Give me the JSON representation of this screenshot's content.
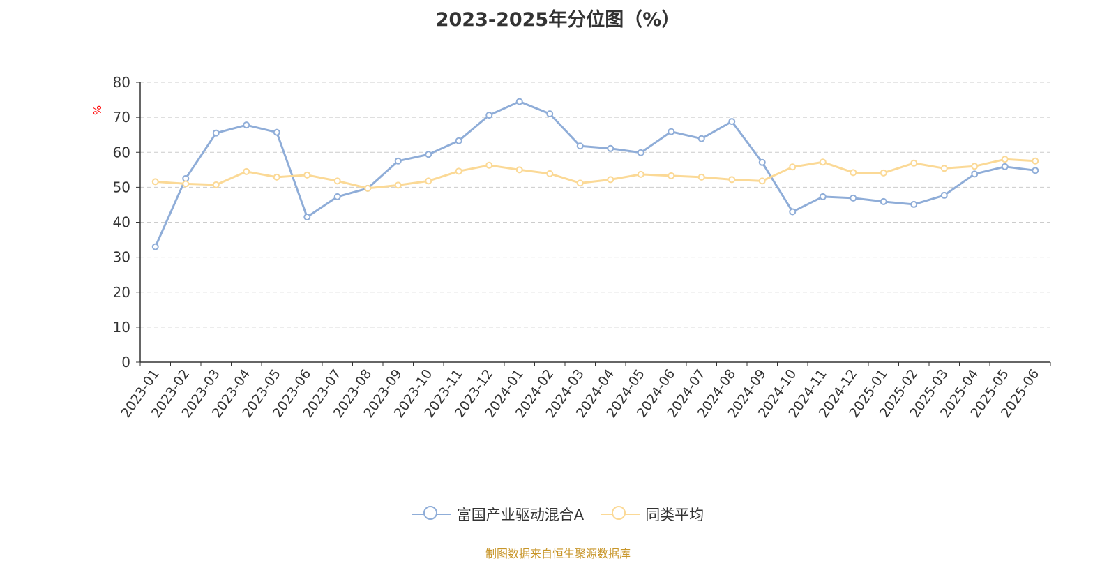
{
  "title": "2023-2025年分位图（%）",
  "source_text": "制图数据来自恒生聚源数据库",
  "colors": {
    "series1": "#8fadd8",
    "series2": "#fbd996",
    "axis": "#333333",
    "grid": "#cccccc",
    "unit": "#ff0000",
    "source": "#c8962a"
  },
  "chart_data": {
    "type": "line",
    "title": "2023-2025年分位图（%）",
    "ylabel": "%",
    "xlabel": "",
    "ylim": [
      0,
      80
    ],
    "yticks": [
      0,
      10,
      20,
      30,
      40,
      50,
      60,
      70,
      80
    ],
    "grid": true,
    "legend_position": "bottom",
    "categories": [
      "2023-01",
      "2023-02",
      "2023-03",
      "2023-04",
      "2023-05",
      "2023-06",
      "2023-07",
      "2023-08",
      "2023-09",
      "2023-10",
      "2023-11",
      "2023-12",
      "2024-01",
      "2024-02",
      "2024-03",
      "2024-04",
      "2024-05",
      "2024-06",
      "2024-07",
      "2024-08",
      "2024-09",
      "2024-10",
      "2024-11",
      "2024-12",
      "2025-01",
      "2025-02",
      "2025-03",
      "2025-04",
      "2025-05",
      "2025-06"
    ],
    "series": [
      {
        "name": "富国产业驱动混合A",
        "color": "#8fadd8",
        "values": [
          33.0,
          52.5,
          65.5,
          67.8,
          65.7,
          41.5,
          47.3,
          49.7,
          57.5,
          59.4,
          63.3,
          70.6,
          74.5,
          71.0,
          61.8,
          61.1,
          59.9,
          65.9,
          63.9,
          68.8,
          57.1,
          43.0,
          47.3,
          46.9,
          45.9,
          45.1,
          47.7,
          53.8,
          55.9,
          54.8
        ]
      },
      {
        "name": "同类平均",
        "color": "#fbd996",
        "values": [
          51.6,
          51.0,
          50.7,
          54.5,
          52.9,
          53.5,
          51.8,
          49.7,
          50.6,
          51.8,
          54.6,
          56.3,
          55.0,
          53.9,
          51.2,
          52.2,
          53.7,
          53.3,
          52.9,
          52.2,
          51.8,
          55.8,
          57.2,
          54.2,
          54.1,
          56.9,
          55.4,
          56.0,
          58.0,
          57.5
        ]
      }
    ]
  }
}
